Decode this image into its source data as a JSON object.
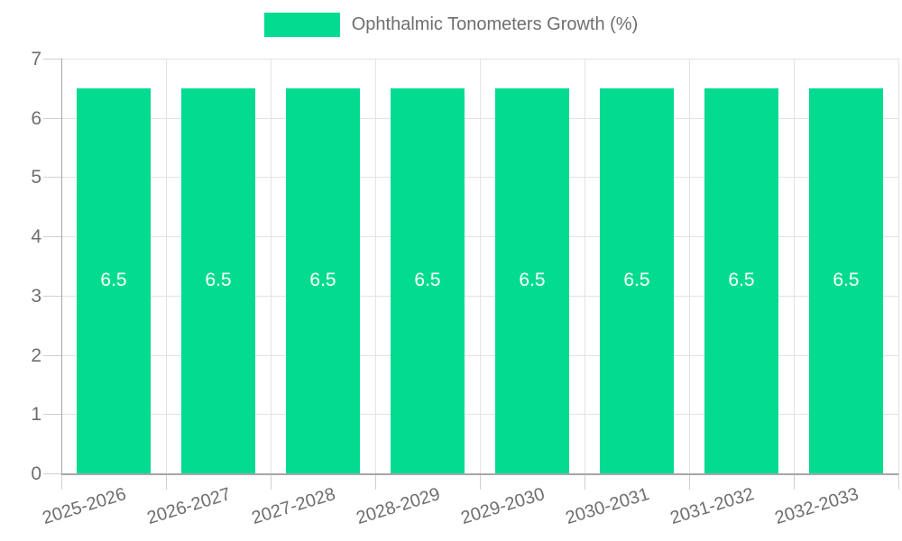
{
  "chart_data": {
    "type": "bar",
    "title": "Ophthalmic Tonometers Growth (%)",
    "legend": {
      "label": "Ophthalmic Tonometers Growth (%)",
      "position": "top-center"
    },
    "categories": [
      "2025-2026",
      "2026-2027",
      "2027-2028",
      "2028-2029",
      "2029-2030",
      "2030-2031",
      "2031-2032",
      "2032-2033"
    ],
    "series": [
      {
        "name": "Ophthalmic Tonometers Growth (%)",
        "values": [
          6.5,
          6.5,
          6.5,
          6.5,
          6.5,
          6.5,
          6.5,
          6.5
        ]
      }
    ],
    "value_labels": [
      "6.5",
      "6.5",
      "6.5",
      "6.5",
      "6.5",
      "6.5",
      "6.5",
      "6.5"
    ],
    "xlabel": "",
    "ylabel": "",
    "ylim": [
      0,
      7
    ],
    "ytick_step": 1,
    "ytick_labels": [
      "0",
      "1",
      "2",
      "3",
      "4",
      "5",
      "6",
      "7"
    ],
    "grid": true,
    "colors": {
      "bar": "#03dc90",
      "value_label": "#ffffff",
      "tick_text": "#6e6e6e",
      "gridline": "#e3e3e3",
      "axis": "#a6a6a6"
    }
  }
}
